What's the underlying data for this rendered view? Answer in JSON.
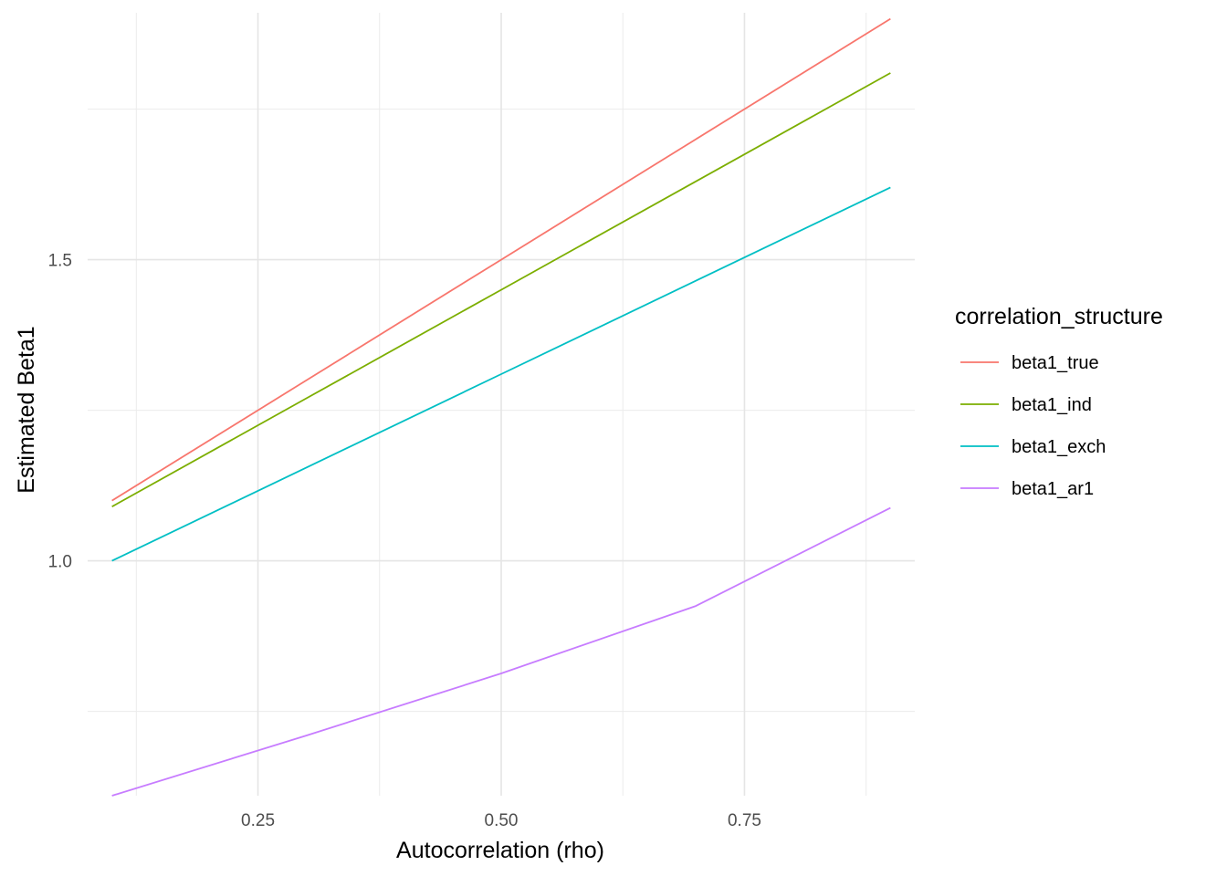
{
  "chart_data": {
    "type": "line",
    "xlabel": "Autocorrelation (rho)",
    "ylabel": "Estimated Beta1",
    "xlim": [
      0.075,
      0.925
    ],
    "ylim": [
      0.61,
      1.91
    ],
    "x_ticks": [
      0.25,
      0.5,
      0.75
    ],
    "x_tick_labels": [
      "0.25",
      "0.50",
      "0.75"
    ],
    "x_minor_ticks": [
      0.125,
      0.375,
      0.625,
      0.875
    ],
    "y_ticks": [
      1.0,
      1.5
    ],
    "y_tick_labels": [
      "1.0",
      "1.5"
    ],
    "y_minor_ticks": [
      0.75,
      1.25,
      1.75
    ],
    "grid": true,
    "legend": {
      "title": "correlation_structure",
      "placement": "right"
    },
    "series": [
      {
        "name": "beta1_true",
        "color": "#F8766D",
        "x": [
          0.1,
          0.3,
          0.5,
          0.7,
          0.9
        ],
        "y": [
          1.1,
          1.3,
          1.5,
          1.7,
          1.9
        ]
      },
      {
        "name": "beta1_ind",
        "color": "#7CAE00",
        "x": [
          0.1,
          0.3,
          0.5,
          0.7,
          0.9
        ],
        "y": [
          1.09,
          1.27,
          1.45,
          1.63,
          1.81
        ]
      },
      {
        "name": "beta1_exch",
        "color": "#00BFC4",
        "x": [
          0.1,
          0.3,
          0.5,
          0.7,
          0.9
        ],
        "y": [
          1.0,
          1.155,
          1.31,
          1.465,
          1.62
        ]
      },
      {
        "name": "beta1_ar1",
        "color": "#C77CFF",
        "x": [
          0.1,
          0.3,
          0.5,
          0.7,
          0.9
        ],
        "y": [
          0.61,
          0.71,
          0.813,
          0.925,
          1.088
        ]
      }
    ]
  }
}
